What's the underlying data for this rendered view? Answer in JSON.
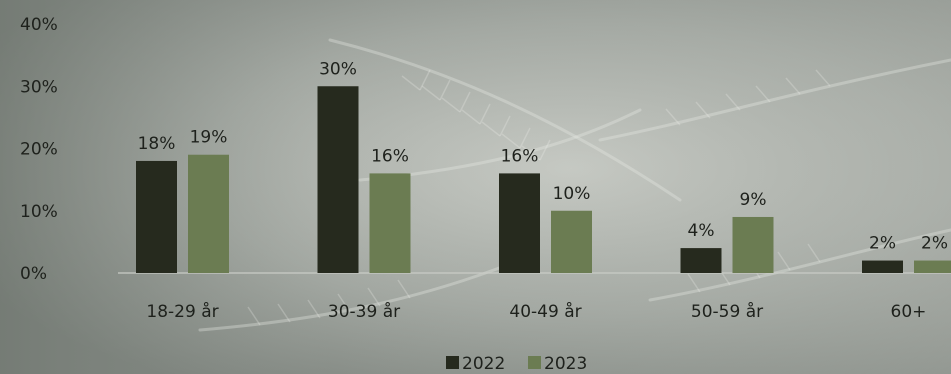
{
  "chart_data": {
    "type": "bar",
    "title": "",
    "xlabel": "",
    "ylabel": "",
    "categories": [
      "18-29 år",
      "30-39 år",
      "40-49 år",
      "50-59 år",
      "60+"
    ],
    "series": [
      {
        "name": "2022",
        "color": "#262a1e",
        "values": [
          18,
          30,
          16,
          4,
          2
        ]
      },
      {
        "name": "2023",
        "color": "#6b7c52",
        "values": [
          19,
          16,
          10,
          9,
          2
        ]
      }
    ],
    "value_labels": {
      "2022": [
        "18%",
        "30%",
        "16%",
        "4%",
        "2%"
      ],
      "2023": [
        "19%",
        "16%",
        "10%",
        "9%",
        "2%"
      ]
    },
    "yticks": [
      "0%",
      "10%",
      "20%",
      "30%",
      "40%"
    ],
    "ylim": [
      0,
      40
    ],
    "grid": false,
    "legend_position": "bottom-center"
  }
}
